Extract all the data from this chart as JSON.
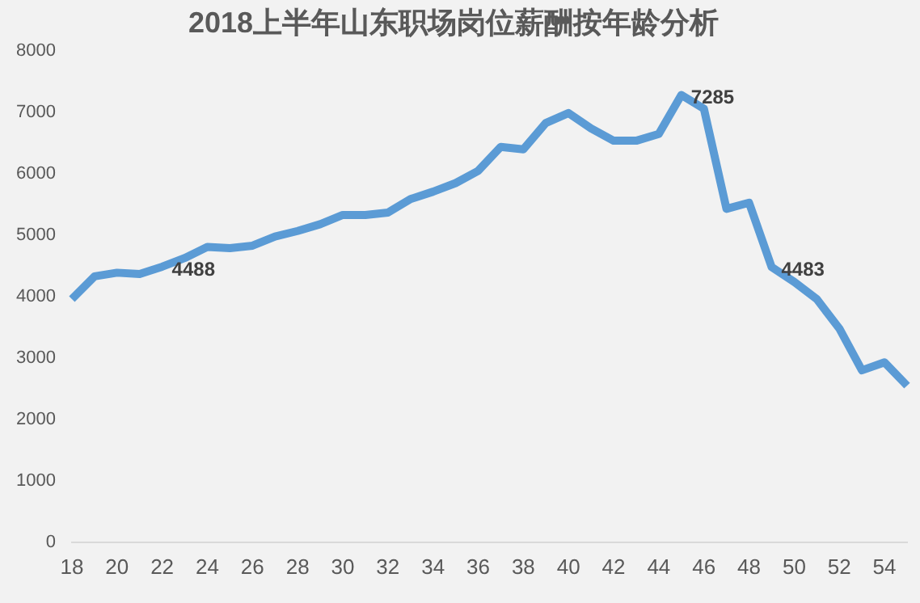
{
  "chart_data": {
    "type": "line",
    "title": "2018上半年山东职场岗位薪酬按年龄分析",
    "categories": [
      "18",
      null,
      "20",
      null,
      "22",
      null,
      "24",
      null,
      "26",
      null,
      "28",
      null,
      "30",
      null,
      "32",
      null,
      "34",
      null,
      "36",
      null,
      "38",
      null,
      "40",
      null,
      "42",
      null,
      "44",
      null,
      "46",
      null,
      "48",
      null,
      "50",
      null,
      "52",
      null,
      "54",
      null
    ],
    "series": [
      {
        "color": "#5b9bd5",
        "values": [
          3960,
          4330,
          4390,
          4370,
          4488,
          4630,
          4810,
          4790,
          4830,
          4980,
          5070,
          5180,
          5330,
          5330,
          5370,
          5590,
          5710,
          5850,
          6050,
          6440,
          6400,
          6830,
          6990,
          6740,
          6540,
          6540,
          6650,
          7285,
          7060,
          5430,
          5530,
          4483,
          4240,
          3960,
          3480,
          2800,
          2930,
          2550
        ],
        "value_labels": [
          null,
          null,
          null,
          null,
          "4488",
          null,
          null,
          null,
          null,
          null,
          null,
          null,
          null,
          null,
          null,
          null,
          null,
          null,
          null,
          null,
          null,
          null,
          null,
          null,
          null,
          null,
          null,
          "7285",
          null,
          null,
          null,
          "4483",
          null,
          null,
          null,
          null,
          null,
          null
        ]
      }
    ],
    "ylim": [
      0,
      8000
    ],
    "yticks": [
      0,
      1000,
      2000,
      3000,
      4000,
      5000,
      6000,
      7000,
      8000
    ],
    "grid": false,
    "legend": false,
    "marker": "none"
  }
}
